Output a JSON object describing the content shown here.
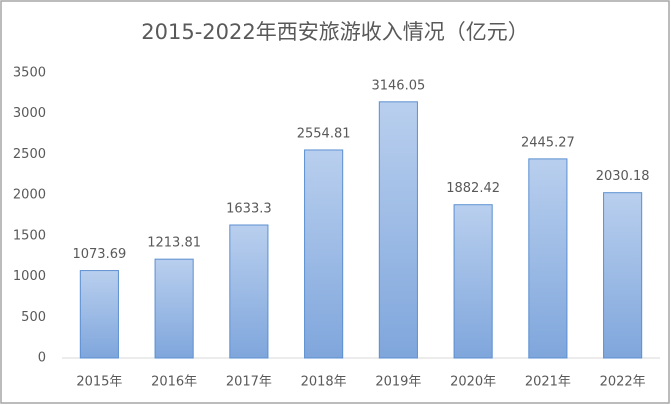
{
  "chart_data": {
    "type": "bar",
    "title": "2015-2022年西安旅游收入情况（亿元）",
    "categories": [
      "2015年",
      "2016年",
      "2017年",
      "2018年",
      "2019年",
      "2020年",
      "2021年",
      "2022年"
    ],
    "values": [
      1073.69,
      1213.81,
      1633.3,
      2554.81,
      3146.05,
      1882.42,
      2445.27,
      2030.18
    ],
    "color": "#8fb4e3",
    "ylim": [
      0,
      3500
    ],
    "yticks": [
      0,
      500,
      1000,
      1500,
      2000,
      2500,
      3000,
      3500
    ],
    "grid": false
  }
}
